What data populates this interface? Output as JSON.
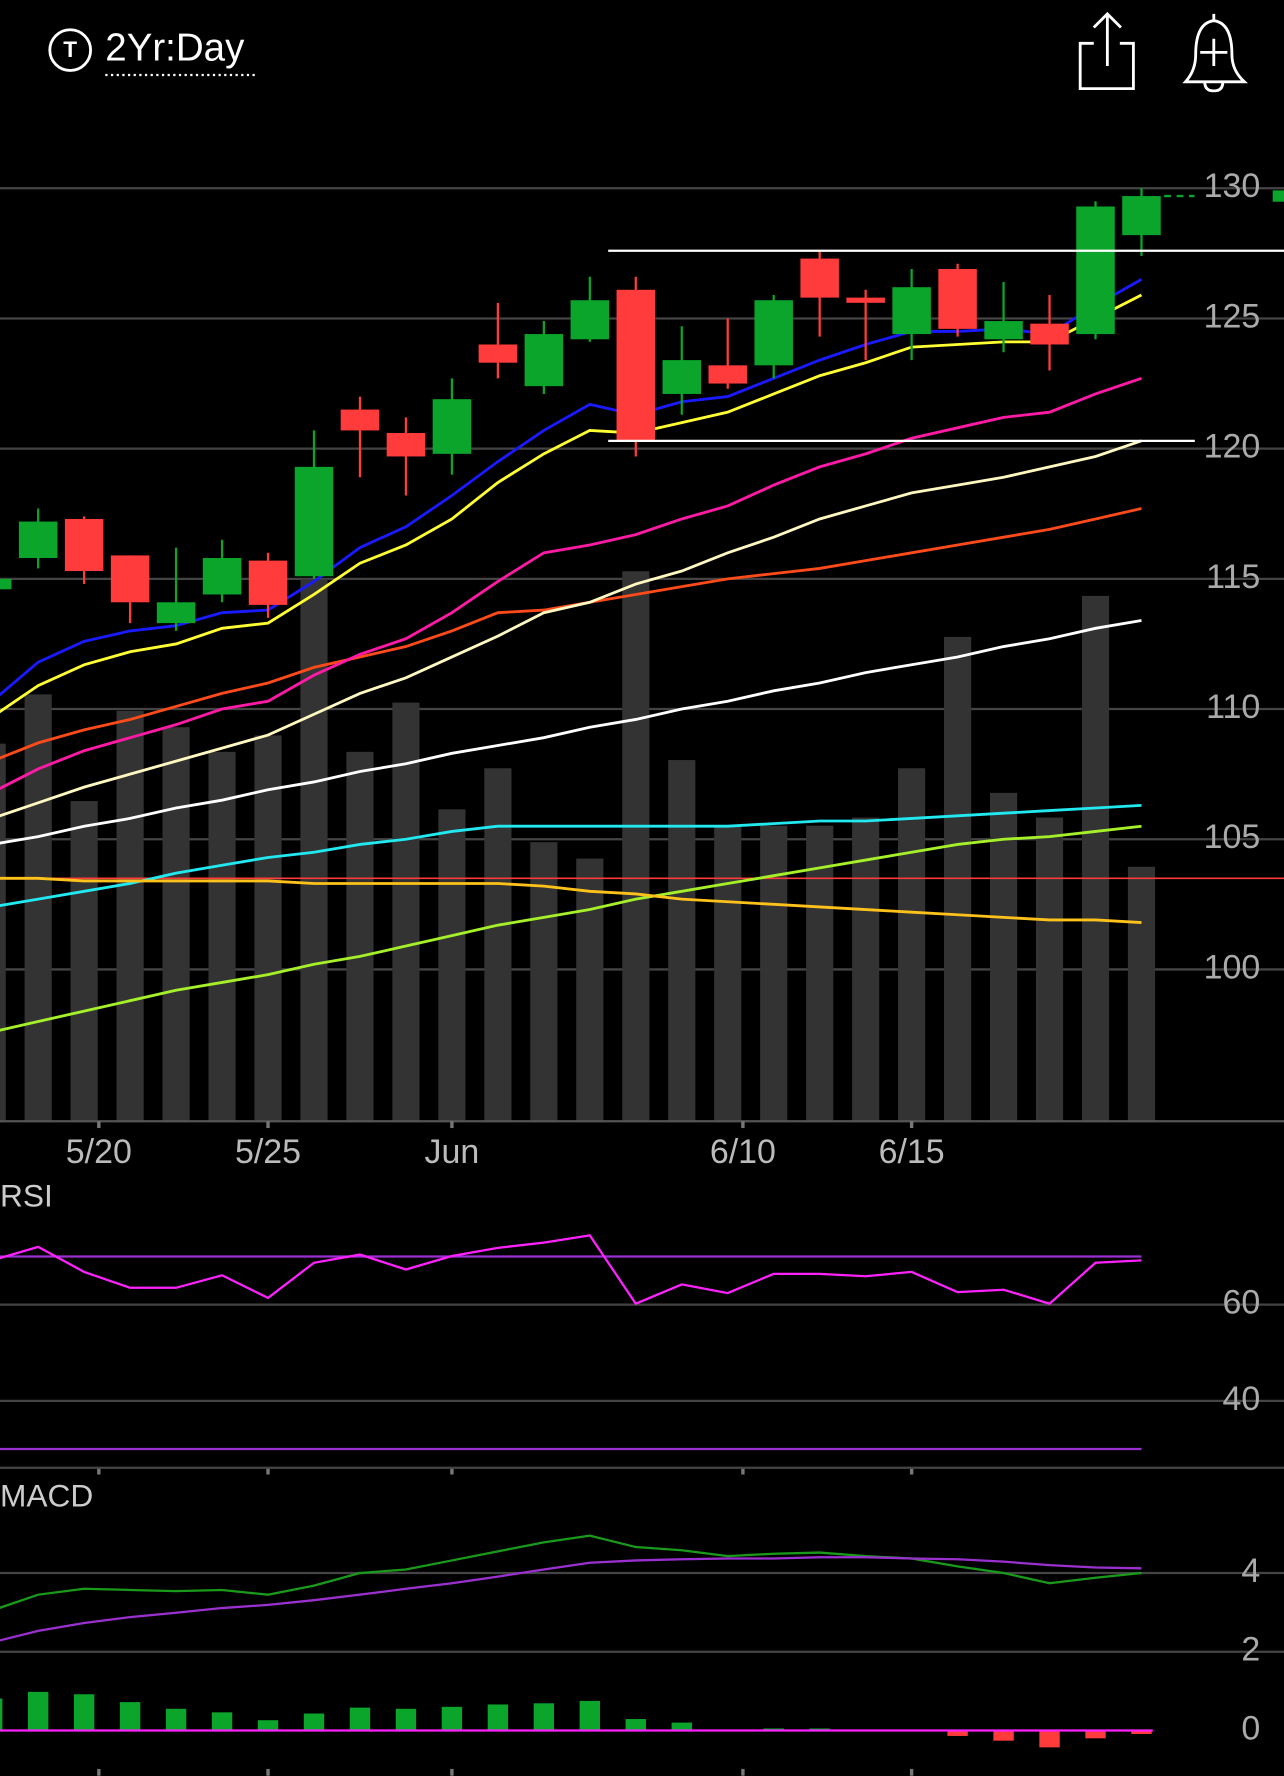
{
  "header": {
    "title": "2Yr:Day",
    "icon_label": "T"
  },
  "chart_data": [
    {
      "type": "candlestick",
      "x": [
        0,
        1,
        2,
        3,
        4,
        5,
        6,
        7,
        8,
        9,
        10,
        11,
        12,
        13,
        14,
        15,
        16,
        17,
        18,
        19,
        20,
        21,
        22,
        23,
        24,
        25
      ],
      "open": [
        114.6,
        115.8,
        117.3,
        115.9,
        113.3,
        114.4,
        115.7,
        115.1,
        121.5,
        120.6,
        119.8,
        124.0,
        122.4,
        124.2,
        126.1,
        122.1,
        123.2,
        123.2,
        127.3,
        125.8,
        124.4,
        126.9,
        124.2,
        124.8,
        124.4,
        128.2
      ],
      "high": [
        115.1,
        117.7,
        117.4,
        115.9,
        116.2,
        116.5,
        116.0,
        120.7,
        122.0,
        121.2,
        122.7,
        125.6,
        124.9,
        126.6,
        126.6,
        124.7,
        125.0,
        125.9,
        127.6,
        126.1,
        126.9,
        127.1,
        126.4,
        125.9,
        129.5,
        130.0
      ],
      "low": [
        114.5,
        115.4,
        114.8,
        113.3,
        113.0,
        114.1,
        113.5,
        115.0,
        118.9,
        118.2,
        119.0,
        122.7,
        122.1,
        124.1,
        119.7,
        121.3,
        122.3,
        122.7,
        124.3,
        123.4,
        123.4,
        124.3,
        123.7,
        123.0,
        124.2,
        127.4
      ],
      "close": [
        115.0,
        117.2,
        115.3,
        114.1,
        114.1,
        115.8,
        114.0,
        119.3,
        120.7,
        119.7,
        121.9,
        123.3,
        124.4,
        125.7,
        120.3,
        123.4,
        122.5,
        125.7,
        125.8,
        125.6,
        126.2,
        124.6,
        124.9,
        124.0,
        129.3,
        129.7
      ],
      "up_color": "#0aa52a",
      "down_color": "#ff3b3b",
      "volume": [
        46,
        52,
        39,
        50,
        48,
        45,
        47,
        66,
        45,
        51,
        38,
        43,
        34,
        32,
        67,
        44,
        36,
        36,
        36,
        37,
        43,
        59,
        40,
        37,
        64,
        31
      ],
      "volume_color": "#333333",
      "volume_ylim": [
        0,
        120
      ],
      "moving_averages": [
        {
          "color": "#ffffff",
          "values": [
            104.8,
            105.1,
            105.5,
            105.8,
            106.2,
            106.5,
            106.9,
            107.2,
            107.6,
            107.9,
            108.3,
            108.6,
            108.9,
            109.3,
            109.6,
            110.0,
            110.3,
            110.7,
            111.0,
            111.4,
            111.7,
            112.0,
            112.4,
            112.7,
            113.1,
            113.4
          ]
        },
        {
          "color": "#22e8f0",
          "values": [
            102.4,
            102.7,
            103.0,
            103.3,
            103.7,
            104.0,
            104.3,
            104.5,
            104.8,
            105.0,
            105.3,
            105.5,
            105.5,
            105.5,
            105.5,
            105.5,
            105.5,
            105.6,
            105.7,
            105.7,
            105.8,
            105.9,
            106.0,
            106.1,
            106.2,
            106.3
          ]
        },
        {
          "color": "#a6f02a",
          "values": [
            97.6,
            98.0,
            98.4,
            98.8,
            99.2,
            99.5,
            99.8,
            100.2,
            100.5,
            100.9,
            101.3,
            101.7,
            102.0,
            102.3,
            102.7,
            103.0,
            103.3,
            103.6,
            103.9,
            104.2,
            104.5,
            104.8,
            105.0,
            105.1,
            105.3,
            105.5
          ]
        },
        {
          "color": "#ffc21a",
          "values": [
            103.5,
            103.5,
            103.4,
            103.4,
            103.4,
            103.4,
            103.4,
            103.3,
            103.3,
            103.3,
            103.3,
            103.3,
            103.2,
            103.0,
            102.9,
            102.7,
            102.6,
            102.5,
            102.4,
            102.3,
            102.2,
            102.1,
            102.0,
            101.9,
            101.9,
            101.8
          ]
        },
        {
          "color": "#ff4a1a",
          "values": [
            108.0,
            108.7,
            109.2,
            109.6,
            110.1,
            110.6,
            111.0,
            111.6,
            112.0,
            112.4,
            113.0,
            113.7,
            113.8,
            114.1,
            114.4,
            114.7,
            115.0,
            115.2,
            115.4,
            115.7,
            116.0,
            116.3,
            116.6,
            116.9,
            117.3,
            117.7
          ]
        },
        {
          "color": "#fff8c0",
          "values": [
            105.8,
            106.4,
            107.0,
            107.5,
            108.0,
            108.5,
            109.0,
            109.8,
            110.6,
            111.2,
            112.0,
            112.8,
            113.7,
            114.1,
            114.8,
            115.3,
            116.0,
            116.6,
            117.3,
            117.8,
            118.3,
            118.6,
            118.9,
            119.3,
            119.7,
            120.3
          ]
        },
        {
          "color": "#ff1aa6",
          "values": [
            106.8,
            107.7,
            108.4,
            108.9,
            109.4,
            110.0,
            110.3,
            111.3,
            112.1,
            112.7,
            113.7,
            114.9,
            116.0,
            116.3,
            116.7,
            117.3,
            117.8,
            118.6,
            119.3,
            119.8,
            120.4,
            120.8,
            121.2,
            121.4,
            122.1,
            122.7
          ]
        },
        {
          "color": "#ffff33",
          "values": [
            109.7,
            110.9,
            111.7,
            112.2,
            112.5,
            113.1,
            113.3,
            114.4,
            115.6,
            116.3,
            117.3,
            118.7,
            119.8,
            120.7,
            120.6,
            121.0,
            121.4,
            122.1,
            122.8,
            123.3,
            123.9,
            124.0,
            124.1,
            124.1,
            125.0,
            125.9
          ]
        },
        {
          "color": "#1a1aff",
          "values": [
            110.3,
            111.8,
            112.6,
            113.0,
            113.2,
            113.7,
            113.8,
            114.9,
            116.2,
            117.0,
            118.2,
            119.5,
            120.7,
            121.7,
            121.3,
            121.8,
            122.0,
            122.7,
            123.4,
            124.0,
            124.5,
            124.5,
            124.6,
            124.4,
            125.5,
            126.5
          ]
        }
      ],
      "reference_line": {
        "value": 103.5,
        "color": "#ff3b3b"
      },
      "levels": [
        {
          "value": 127.6,
          "color": "#ffffff",
          "x_from": 13.4,
          "x_to": 28.1
        },
        {
          "value": 120.3,
          "color": "#ffffff",
          "x_from": 13.4,
          "x_to": 26.16
        }
      ],
      "ylim": [
        94.17,
        132
      ],
      "yticks": [
        100,
        105,
        110,
        115,
        120,
        125,
        130
      ],
      "xlim": [
        0.17,
        28.1
      ],
      "xticks": [
        {
          "value": 2.32,
          "label": "5/20"
        },
        {
          "value": 6,
          "label": "5/25"
        },
        {
          "value": 10,
          "label": "Jun"
        },
        {
          "value": 16.33,
          "label": "6/10"
        },
        {
          "value": 20,
          "label": "6/15"
        }
      ],
      "grid": true
    },
    {
      "type": "line",
      "title": "RSI",
      "x": [
        0,
        1,
        2,
        3,
        4,
        5,
        6,
        7,
        8,
        9,
        10,
        11,
        12,
        13,
        14,
        15,
        16,
        17,
        18,
        19,
        20,
        21,
        22,
        23,
        24,
        25
      ],
      "series": [
        {
          "color": "#ff22ff",
          "values": [
            69.2,
            72.0,
            66.8,
            63.5,
            63.5,
            66.1,
            61.4,
            68.7,
            70.4,
            67.3,
            70.1,
            71.8,
            72.9,
            74.4,
            60.2,
            64.2,
            62.4,
            66.4,
            66.4,
            65.9,
            66.8,
            62.6,
            63.1,
            60.2,
            68.7,
            69.2
          ]
        }
      ],
      "levels": [
        {
          "value": 70,
          "color": "#9b30d0"
        },
        {
          "value": 30,
          "color": "#9b30d0"
        }
      ],
      "ylim": [
        26.1,
        86.35
      ],
      "yticks": [
        40,
        60
      ],
      "xlim": [
        0.17,
        28.1
      ],
      "grid": true
    },
    {
      "type": "line",
      "title": "MACD",
      "x": [
        0,
        1,
        2,
        3,
        4,
        5,
        6,
        7,
        8,
        9,
        10,
        11,
        12,
        13,
        14,
        15,
        16,
        17,
        18,
        19,
        20,
        21,
        22,
        23,
        24,
        25
      ],
      "series": [
        {
          "color": "#1a9a1a",
          "values": [
            3.05,
            3.45,
            3.6,
            3.57,
            3.54,
            3.57,
            3.45,
            3.68,
            4.0,
            4.09,
            4.32,
            4.55,
            4.78,
            4.95,
            4.66,
            4.58,
            4.43,
            4.49,
            4.52,
            4.43,
            4.37,
            4.17,
            4.0,
            3.74,
            3.88,
            4.0
          ]
        },
        {
          "color": "#9b30d0",
          "values": [
            2.24,
            2.53,
            2.73,
            2.88,
            2.99,
            3.11,
            3.19,
            3.31,
            3.45,
            3.6,
            3.74,
            3.91,
            4.09,
            4.26,
            4.32,
            4.35,
            4.37,
            4.37,
            4.4,
            4.4,
            4.37,
            4.35,
            4.29,
            4.2,
            4.14,
            4.12
          ]
        }
      ],
      "histogram": [
        0.81,
        0.98,
        0.92,
        0.72,
        0.55,
        0.46,
        0.26,
        0.43,
        0.58,
        0.55,
        0.6,
        0.66,
        0.69,
        0.75,
        0.29,
        0.2,
        0,
        0.05,
        0.05,
        0,
        0,
        -0.14,
        -0.26,
        -0.43,
        -0.2,
        -0.09
      ],
      "up_color": "#0aa52a",
      "down_color": "#ff3b3b",
      "zero_color": "#ff22ff",
      "ylim": [
        -1.15,
        5.41
      ],
      "yticks": [
        0,
        2,
        4
      ],
      "xlim": [
        0.17,
        28.1
      ],
      "grid": true
    }
  ]
}
